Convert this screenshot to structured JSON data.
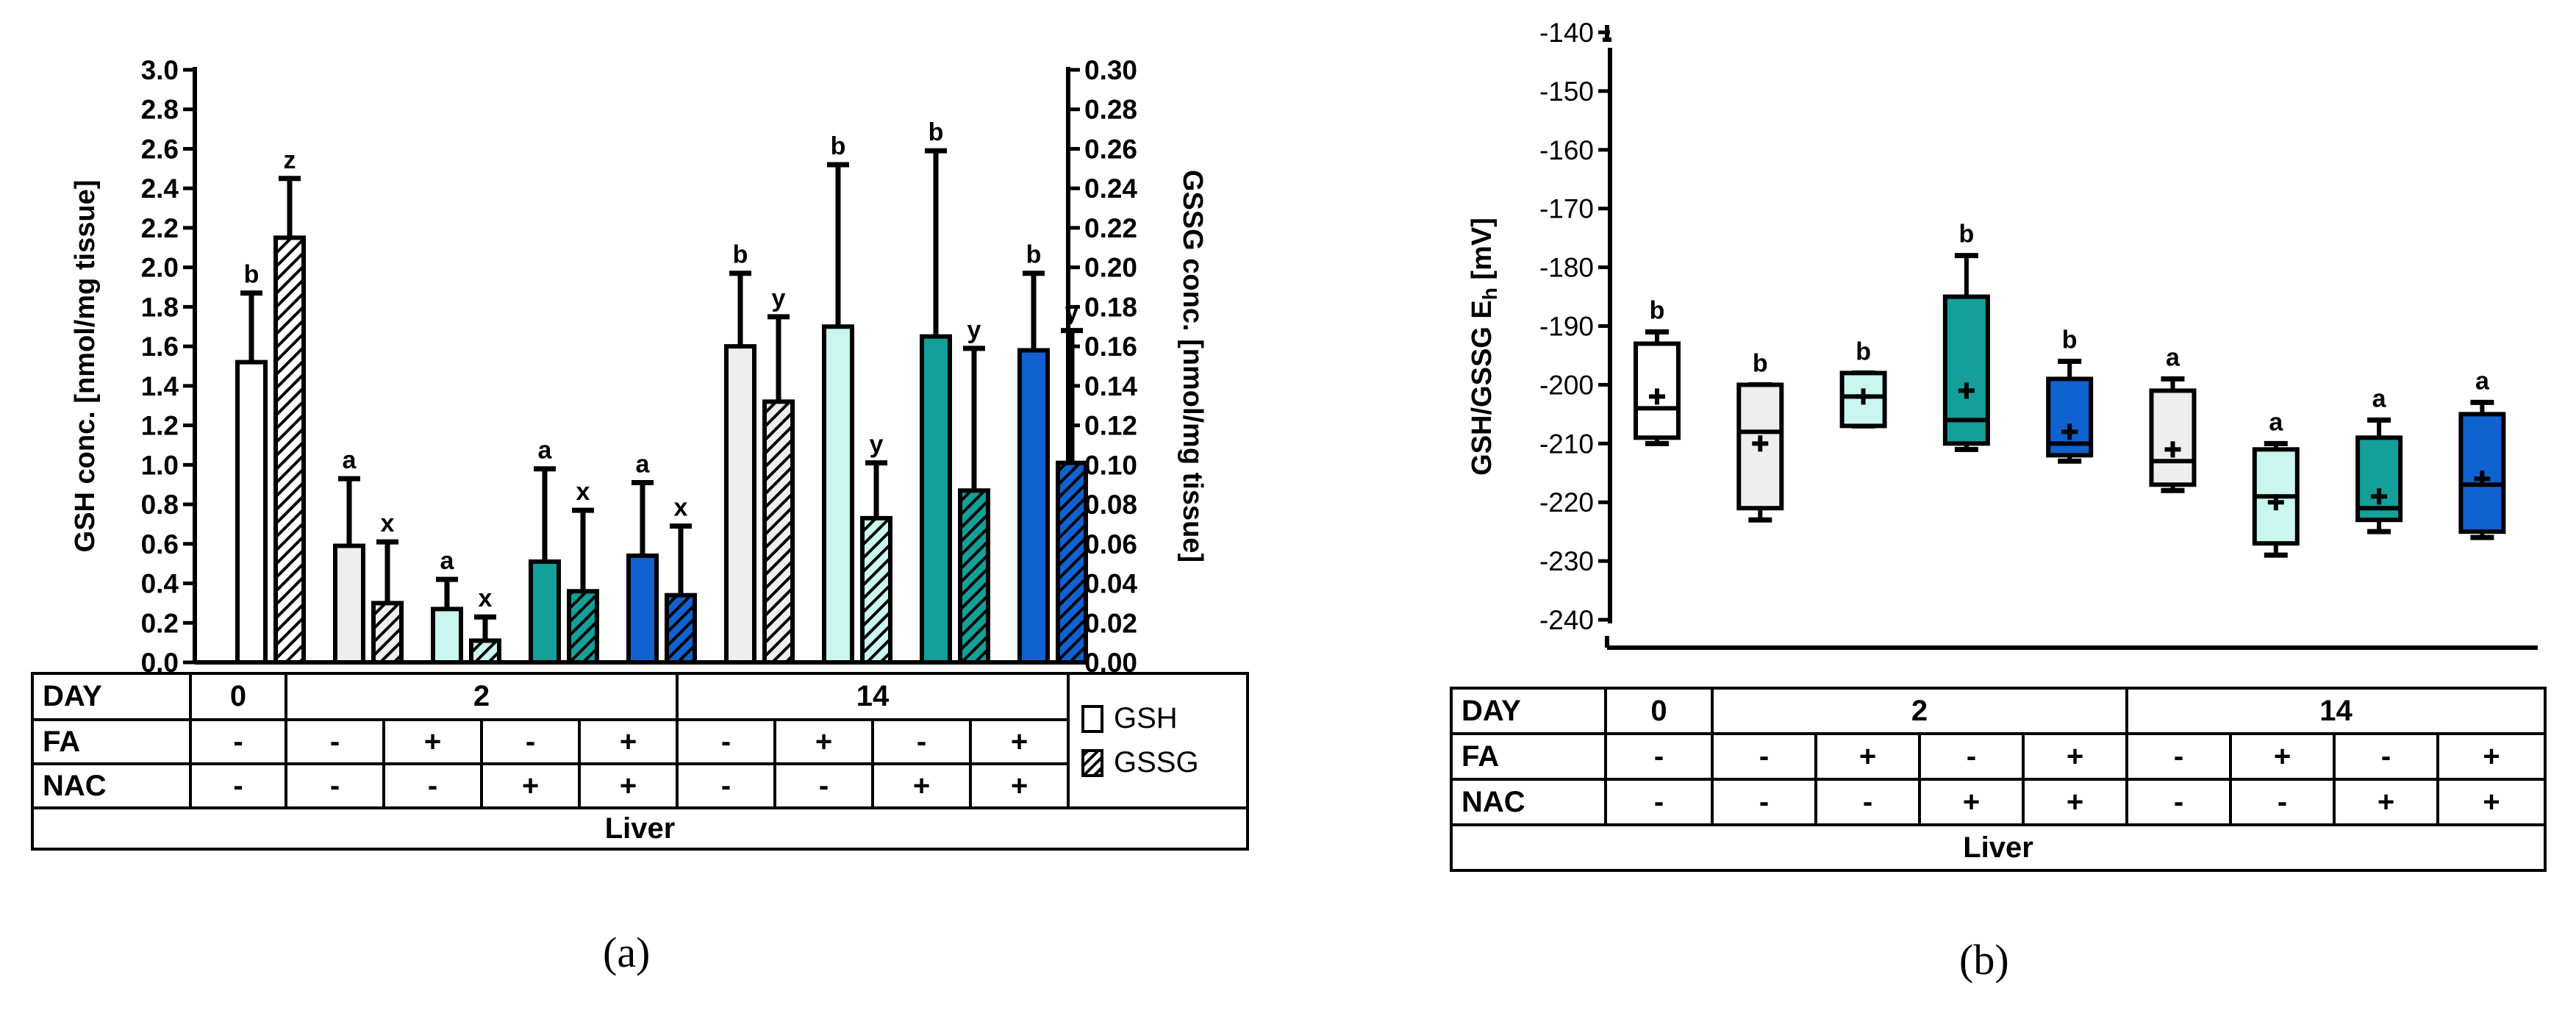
{
  "captions": {
    "a": "(a)",
    "b": "(b)"
  },
  "colors": {
    "day0": "#ffffff",
    "g1": "#eeeeee",
    "g2": "#c9f6ee",
    "g3": "#149f98",
    "g4": "#0f62cf"
  },
  "chart_data": [
    {
      "id": "a",
      "type": "bar",
      "title": "",
      "ylabel_left": "GSH conc. [nmol/mg tissue]",
      "ylabel_right": "GSSG conc. [nmol/mg tissue]",
      "ylim_left": [
        0,
        3.0
      ],
      "ylim_right": [
        0,
        0.3
      ],
      "yticks_left": [
        "0.0",
        "0.2",
        "0.4",
        "0.6",
        "0.8",
        "1.0",
        "1.2",
        "1.4",
        "1.6",
        "1.8",
        "2.0",
        "2.2",
        "2.4",
        "2.6",
        "2.8",
        "3.0"
      ],
      "yticks_right": [
        "0.00",
        "0.02",
        "0.04",
        "0.06",
        "0.08",
        "0.10",
        "0.12",
        "0.14",
        "0.16",
        "0.18",
        "0.20",
        "0.22",
        "0.24",
        "0.26",
        "0.28",
        "0.30"
      ],
      "legend": [
        "GSH",
        "GSSG"
      ],
      "groups": [
        {
          "day": "0",
          "fa": "-",
          "nac": "-",
          "color_key": "day0",
          "gsh": 1.52,
          "gsh_err": 0.35,
          "gsh_label": "b",
          "gssg": 0.215,
          "gssg_err": 0.03,
          "gssg_label": "z"
        },
        {
          "day": "2",
          "fa": "-",
          "nac": "-",
          "color_key": "g1",
          "gsh": 0.59,
          "gsh_err": 0.34,
          "gsh_label": "a",
          "gssg": 0.03,
          "gssg_err": 0.031,
          "gssg_label": "x"
        },
        {
          "day": "2",
          "fa": "+",
          "nac": "-",
          "color_key": "g2",
          "gsh": 0.27,
          "gsh_err": 0.15,
          "gsh_label": "a",
          "gssg": 0.011,
          "gssg_err": 0.012,
          "gssg_label": "x"
        },
        {
          "day": "2",
          "fa": "-",
          "nac": "+",
          "color_key": "g3",
          "gsh": 0.51,
          "gsh_err": 0.47,
          "gsh_label": "a",
          "gssg": 0.036,
          "gssg_err": 0.041,
          "gssg_label": "x"
        },
        {
          "day": "2",
          "fa": "+",
          "nac": "+",
          "color_key": "g4",
          "gsh": 0.54,
          "gsh_err": 0.37,
          "gsh_label": "a",
          "gssg": 0.034,
          "gssg_err": 0.035,
          "gssg_label": "x"
        },
        {
          "day": "14",
          "fa": "-",
          "nac": "-",
          "color_key": "g1",
          "gsh": 1.6,
          "gsh_err": 0.37,
          "gsh_label": "b",
          "gssg": 0.132,
          "gssg_err": 0.043,
          "gssg_label": "y"
        },
        {
          "day": "14",
          "fa": "+",
          "nac": "-",
          "color_key": "g2",
          "gsh": 1.7,
          "gsh_err": 0.82,
          "gsh_label": "b",
          "gssg": 0.073,
          "gssg_err": 0.028,
          "gssg_label": "y"
        },
        {
          "day": "14",
          "fa": "-",
          "nac": "+",
          "color_key": "g3",
          "gsh": 1.65,
          "gsh_err": 0.94,
          "gsh_label": "b",
          "gssg": 0.087,
          "gssg_err": 0.072,
          "gssg_label": "y"
        },
        {
          "day": "14",
          "fa": "+",
          "nac": "+",
          "color_key": "g4",
          "gsh": 1.58,
          "gsh_err": 0.39,
          "gsh_label": "b",
          "gssg": 0.101,
          "gssg_err": 0.067,
          "gssg_label": "y"
        }
      ]
    },
    {
      "id": "b",
      "type": "box",
      "title": "",
      "ylabel": "GSH/GSSG E",
      "ylabel_sub": "h",
      "ylabel_unit": " [mV]",
      "ylim": [
        -245,
        -137
      ],
      "yticks": [
        "-140",
        "-150",
        "-160",
        "-170",
        "-180",
        "-190",
        "-200",
        "-210",
        "-220",
        "-230",
        "-240"
      ],
      "groups": [
        {
          "day": "0",
          "fa": "-",
          "nac": "-",
          "color_key": "day0",
          "min": -210,
          "q1": -209,
          "median": -204,
          "q3": -193,
          "max": -191,
          "mean": -202,
          "label": "b"
        },
        {
          "day": "2",
          "fa": "-",
          "nac": "-",
          "color_key": "g1",
          "min": -223,
          "q1": -221,
          "median": -208,
          "q3": -200,
          "max": -200,
          "mean": -210,
          "label": "b"
        },
        {
          "day": "2",
          "fa": "+",
          "nac": "-",
          "color_key": "g2",
          "min": -207,
          "q1": -207,
          "median": -202,
          "q3": -198,
          "max": -198,
          "mean": -202,
          "label": "b"
        },
        {
          "day": "2",
          "fa": "-",
          "nac": "+",
          "color_key": "g3",
          "min": -211,
          "q1": -210,
          "median": -206,
          "q3": -185,
          "max": -178,
          "mean": -201,
          "label": "b"
        },
        {
          "day": "2",
          "fa": "+",
          "nac": "+",
          "color_key": "g4",
          "min": -213,
          "q1": -212,
          "median": -210,
          "q3": -199,
          "max": -196,
          "mean": -208,
          "label": "b"
        },
        {
          "day": "14",
          "fa": "-",
          "nac": "-",
          "color_key": "g1",
          "min": -218,
          "q1": -217,
          "median": -213,
          "q3": -201,
          "max": -199,
          "mean": -211,
          "label": "a"
        },
        {
          "day": "14",
          "fa": "+",
          "nac": "-",
          "color_key": "g2",
          "min": -229,
          "q1": -227,
          "median": -219,
          "q3": -211,
          "max": -210,
          "mean": -220,
          "label": "a"
        },
        {
          "day": "14",
          "fa": "-",
          "nac": "+",
          "color_key": "g3",
          "min": -225,
          "q1": -223,
          "median": -221,
          "q3": -209,
          "max": -206,
          "mean": -219,
          "label": "a"
        },
        {
          "day": "14",
          "fa": "+",
          "nac": "+",
          "color_key": "g4",
          "min": -226,
          "q1": -225,
          "median": -217,
          "q3": -205,
          "max": -203,
          "mean": -216,
          "label": "a"
        }
      ]
    }
  ],
  "tables": {
    "a": {
      "day_label": "DAY",
      "fa_label": "FA",
      "nac_label": "NAC",
      "tissue": "Liver",
      "days": [
        "0",
        "2",
        "14"
      ],
      "fa": [
        "-",
        "-",
        "+",
        "-",
        "+",
        "-",
        "+",
        "-",
        "+"
      ],
      "nac": [
        "-",
        "-",
        "-",
        "+",
        "+",
        "-",
        "-",
        "+",
        "+"
      ],
      "legend": [
        "GSH",
        "GSSG"
      ]
    },
    "b": {
      "day_label": "DAY",
      "fa_label": "FA",
      "nac_label": "NAC",
      "tissue": "Liver",
      "days": [
        "0",
        "2",
        "14"
      ],
      "fa": [
        "-",
        "-",
        "+",
        "-",
        "+",
        "-",
        "+",
        "-",
        "+"
      ],
      "nac": [
        "-",
        "-",
        "-",
        "+",
        "+",
        "-",
        "-",
        "+",
        "+"
      ]
    }
  }
}
